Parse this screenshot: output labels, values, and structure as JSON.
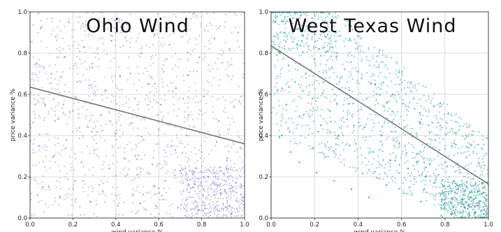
{
  "chart_data": [
    {
      "type": "scatter",
      "title": "Ohio Wind",
      "xlabel": "wind variance %",
      "ylabel": "price variance %",
      "xlim": [
        0,
        1
      ],
      "ylim": [
        0,
        1
      ],
      "x_ticks": [
        "0.0",
        "0.2",
        "0.4",
        "0.6",
        "0.8",
        "1.0"
      ],
      "y_ticks": [
        "0.0",
        "0.2",
        "0.4",
        "0.6",
        "0.8",
        "1.0"
      ],
      "grid": true,
      "point_color": "#8f86d6",
      "trend_color": "#777777",
      "trend_line": {
        "x": [
          0,
          1
        ],
        "y": [
          0.635,
          0.36
        ]
      },
      "points": [
        [
          0.05,
          0.92
        ],
        [
          0.12,
          0.88
        ],
        [
          0.18,
          0.95
        ],
        [
          0.25,
          0.83
        ],
        [
          0.31,
          0.91
        ],
        [
          0.38,
          0.86
        ],
        [
          0.45,
          0.94
        ],
        [
          0.52,
          0.8
        ],
        [
          0.58,
          0.89
        ],
        [
          0.65,
          0.84
        ],
        [
          0.72,
          0.93
        ],
        [
          0.79,
          0.78
        ],
        [
          0.86,
          0.87
        ],
        [
          0.93,
          0.82
        ],
        [
          0.97,
          0.9
        ],
        [
          0.03,
          0.75
        ],
        [
          0.1,
          0.7
        ],
        [
          0.16,
          0.78
        ],
        [
          0.22,
          0.66
        ],
        [
          0.29,
          0.73
        ],
        [
          0.35,
          0.62
        ],
        [
          0.42,
          0.69
        ],
        [
          0.49,
          0.58
        ],
        [
          0.55,
          0.65
        ],
        [
          0.61,
          0.55
        ],
        [
          0.68,
          0.63
        ],
        [
          0.74,
          0.5
        ],
        [
          0.81,
          0.59
        ],
        [
          0.88,
          0.47
        ],
        [
          0.95,
          0.54
        ],
        [
          0.07,
          0.55
        ],
        [
          0.13,
          0.48
        ],
        [
          0.2,
          0.52
        ],
        [
          0.27,
          0.44
        ],
        [
          0.33,
          0.5
        ],
        [
          0.4,
          0.41
        ],
        [
          0.47,
          0.46
        ],
        [
          0.53,
          0.38
        ],
        [
          0.6,
          0.43
        ],
        [
          0.66,
          0.35
        ],
        [
          0.73,
          0.4
        ],
        [
          0.8,
          0.32
        ],
        [
          0.87,
          0.37
        ],
        [
          0.92,
          0.29
        ],
        [
          0.98,
          0.34
        ],
        [
          0.04,
          0.35
        ],
        [
          0.11,
          0.3
        ],
        [
          0.17,
          0.38
        ],
        [
          0.24,
          0.27
        ],
        [
          0.3,
          0.33
        ],
        [
          0.37,
          0.24
        ],
        [
          0.44,
          0.29
        ],
        [
          0.5,
          0.21
        ],
        [
          0.57,
          0.26
        ],
        [
          0.63,
          0.18
        ],
        [
          0.7,
          0.23
        ],
        [
          0.76,
          0.15
        ],
        [
          0.83,
          0.2
        ],
        [
          0.89,
          0.12
        ],
        [
          0.96,
          0.17
        ],
        [
          0.06,
          0.15
        ],
        [
          0.14,
          0.1
        ],
        [
          0.21,
          0.18
        ],
        [
          0.28,
          0.08
        ],
        [
          0.34,
          0.13
        ],
        [
          0.41,
          0.06
        ],
        [
          0.48,
          0.11
        ],
        [
          0.54,
          0.04
        ],
        [
          0.62,
          0.09
        ],
        [
          0.69,
          0.05
        ],
        [
          0.77,
          0.08
        ],
        [
          0.84,
          0.03
        ],
        [
          0.9,
          0.07
        ],
        [
          0.94,
          0.02
        ],
        [
          0.99,
          0.1
        ]
      ]
    },
    {
      "type": "scatter",
      "title": "West Texas Wind",
      "xlabel": "wind variance %",
      "ylabel": "price variance %",
      "xlim": [
        0,
        1
      ],
      "ylim": [
        0,
        1
      ],
      "x_ticks": [
        "0.0",
        "0.2",
        "0.4",
        "0.6",
        "0.8",
        "1.0"
      ],
      "y_ticks": [
        "0.0",
        "0.2",
        "0.4",
        "0.6",
        "0.8",
        "1.0"
      ],
      "grid": true,
      "point_color": "#2a9a9a",
      "trend_color": "#777777",
      "trend_line": {
        "x": [
          0,
          1
        ],
        "y": [
          0.835,
          0.165
        ]
      },
      "points": [
        [
          0.02,
          0.95
        ],
        [
          0.06,
          0.9
        ],
        [
          0.1,
          0.97
        ],
        [
          0.14,
          0.86
        ],
        [
          0.18,
          0.93
        ],
        [
          0.22,
          0.82
        ],
        [
          0.26,
          0.89
        ],
        [
          0.3,
          0.78
        ],
        [
          0.04,
          0.8
        ],
        [
          0.08,
          0.74
        ],
        [
          0.12,
          0.84
        ],
        [
          0.16,
          0.7
        ],
        [
          0.2,
          0.77
        ],
        [
          0.24,
          0.66
        ],
        [
          0.28,
          0.73
        ],
        [
          0.32,
          0.68
        ],
        [
          0.36,
          0.62
        ],
        [
          0.4,
          0.71
        ],
        [
          0.44,
          0.58
        ],
        [
          0.48,
          0.65
        ],
        [
          0.52,
          0.54
        ],
        [
          0.56,
          0.6
        ],
        [
          0.03,
          0.62
        ],
        [
          0.07,
          0.55
        ],
        [
          0.11,
          0.66
        ],
        [
          0.15,
          0.5
        ],
        [
          0.19,
          0.58
        ],
        [
          0.23,
          0.45
        ],
        [
          0.27,
          0.52
        ],
        [
          0.31,
          0.4
        ],
        [
          0.35,
          0.48
        ],
        [
          0.39,
          0.36
        ],
        [
          0.43,
          0.44
        ],
        [
          0.47,
          0.32
        ],
        [
          0.51,
          0.4
        ],
        [
          0.55,
          0.28
        ],
        [
          0.59,
          0.36
        ],
        [
          0.63,
          0.24
        ],
        [
          0.67,
          0.31
        ],
        [
          0.71,
          0.2
        ],
        [
          0.05,
          0.4
        ],
        [
          0.09,
          0.32
        ],
        [
          0.13,
          0.27
        ],
        [
          0.21,
          0.22
        ],
        [
          0.29,
          0.18
        ],
        [
          0.37,
          0.14
        ],
        [
          0.45,
          0.1
        ],
        [
          0.53,
          0.16
        ],
        [
          0.61,
          0.12
        ],
        [
          0.69,
          0.08
        ],
        [
          0.75,
          0.17
        ],
        [
          0.79,
          0.12
        ],
        [
          0.83,
          0.07
        ],
        [
          0.86,
          0.14
        ],
        [
          0.89,
          0.05
        ],
        [
          0.92,
          0.1
        ],
        [
          0.94,
          0.03
        ],
        [
          0.96,
          0.08
        ],
        [
          0.98,
          0.04
        ],
        [
          0.99,
          0.11
        ],
        [
          0.73,
          0.26
        ],
        [
          0.77,
          0.21
        ],
        [
          0.81,
          0.25
        ],
        [
          0.84,
          0.18
        ],
        [
          0.87,
          0.22
        ],
        [
          0.9,
          0.15
        ],
        [
          0.93,
          0.19
        ],
        [
          0.95,
          0.13
        ],
        [
          0.97,
          0.17
        ],
        [
          0.88,
          0.09
        ],
        [
          0.91,
          0.06
        ],
        [
          0.85,
          0.04
        ],
        [
          0.8,
          0.09
        ],
        [
          0.95,
          0.06
        ],
        [
          0.98,
          0.02
        ]
      ]
    }
  ]
}
